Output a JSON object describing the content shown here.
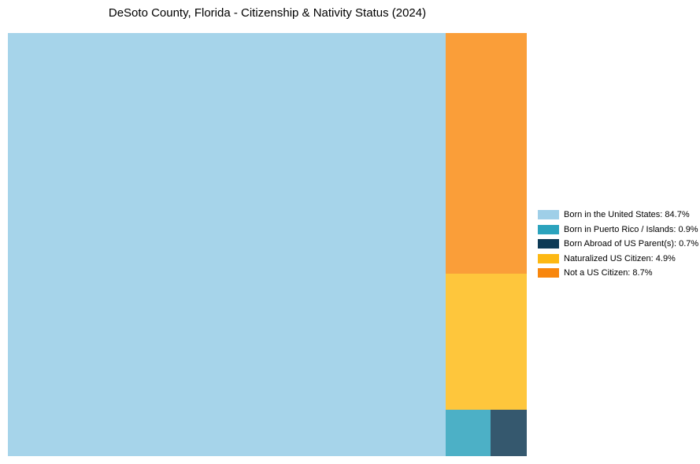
{
  "title": "DeSoto County, Florida - Citizenship & Nativity Status (2024)",
  "chart_data": {
    "type": "treemap",
    "title": "DeSoto County, Florida - Citizenship & Nativity Status (2024)",
    "categories": [
      "Born in the United States",
      "Born in Puerto Rico / Islands",
      "Born Abroad of US Parent(s)",
      "Naturalized US Citizen",
      "Not a US Citizen"
    ],
    "values": [
      84.7,
      0.9,
      0.7,
      4.9,
      8.7
    ],
    "unit": "%",
    "legend_position": "right-center",
    "legend_colors": [
      "#9fcfe8",
      "#2ba3bd",
      "#0d3a55",
      "#fdb813",
      "#f8860d"
    ],
    "cell_colors": [
      "#a6d4ea",
      "#4cb0c6",
      "#35586e",
      "#fec63c",
      "#fa9e39"
    ],
    "layout": "large rect left; right column stacked top-to-bottom: Not a US Citizen, Naturalized US Citizen, bottom row with Born in Puerto Rico / Islands and Born Abroad of US Parent(s)"
  },
  "treemap": {
    "cells": [
      {
        "label": "Born in the United States",
        "value": "84.7%",
        "fill": "#a6d4ea"
      },
      {
        "label": "Not a US Citizen",
        "value": "8.7%",
        "fill": "#fa9e39"
      },
      {
        "label": "Naturalized US Citizen",
        "value": "4.9%",
        "fill": "#fec63c"
      },
      {
        "label": "Born in Puerto Rico / Islands",
        "value": "0.9%",
        "fill": "#4cb0c6"
      },
      {
        "label": "Born Abroad of US Parent(s)",
        "value": "0.7%",
        "fill": "#35586e"
      }
    ]
  },
  "legend": {
    "items": [
      {
        "label": "Born in the United States: 84.7%",
        "color": "#9fcfe8"
      },
      {
        "label": "Born in Puerto Rico / Islands: 0.9%",
        "color": "#2ba3bd"
      },
      {
        "label": "Born Abroad of US Parent(s): 0.7%",
        "color": "#0d3a55"
      },
      {
        "label": "Naturalized US Citizen: 4.9%",
        "color": "#fdb813"
      },
      {
        "label": "Not a US Citizen: 8.7%",
        "color": "#f8860d"
      }
    ]
  }
}
